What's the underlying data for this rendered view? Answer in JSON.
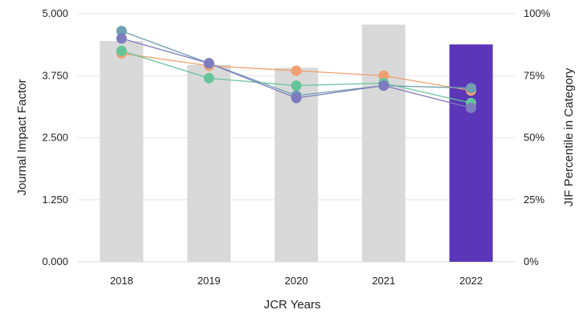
{
  "chart_data": {
    "type": "bar",
    "categories": [
      "2018",
      "2019",
      "2020",
      "2021",
      "2022"
    ],
    "bar_series": {
      "values": [
        4.45,
        3.97,
        3.91,
        4.78,
        4.38
      ],
      "colors": [
        "#d9d9d9",
        "#d9d9d9",
        "#d9d9d9",
        "#d9d9d9",
        "#5b36b8"
      ]
    },
    "line_series": [
      {
        "color": "#f0a070",
        "values": [
          84,
          79,
          77,
          75,
          69
        ]
      },
      {
        "color": "#66c49a",
        "values": [
          85,
          74,
          71,
          72,
          64
        ]
      },
      {
        "color": "#6f9fb0",
        "values": [
          93,
          80,
          67,
          71,
          70
        ]
      },
      {
        "color": "#7d7cbf",
        "values": [
          90,
          80,
          66,
          71,
          62
        ]
      }
    ],
    "xlabel": "JCR Years",
    "ylabel_left": "Journal Impact Factor",
    "ylabel_right": "JIF Percentile in Category",
    "ylim_left": [
      0,
      5
    ],
    "ylim_right": [
      0,
      100
    ],
    "left_ticks": [
      "0.000",
      "1.250",
      "2.500",
      "3.750",
      "5.000"
    ],
    "right_ticks": [
      "0%",
      "25%",
      "50%",
      "75%",
      "100%"
    ],
    "grid": true
  }
}
